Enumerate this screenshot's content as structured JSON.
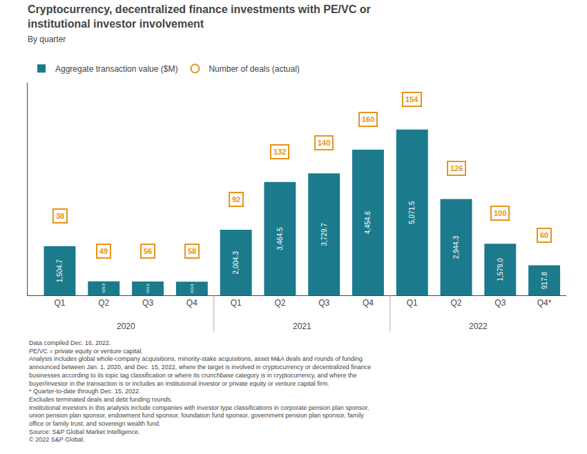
{
  "chart_data": {
    "type": "bar",
    "title": [
      "Cryptocurrency, decentralized finance investments with PE/VC or",
      "institutional investor involvement"
    ],
    "subtitle": "By quarter",
    "categories": [
      [
        "2020",
        "Q1"
      ],
      [
        "2020",
        "Q2"
      ],
      [
        "2020",
        "Q3"
      ],
      [
        "2020",
        "Q4"
      ],
      [
        "2021",
        "Q1"
      ],
      [
        "2021",
        "Q2"
      ],
      [
        "2021",
        "Q3"
      ],
      [
        "2021",
        "Q4"
      ],
      [
        "2022",
        "Q1"
      ],
      [
        "2022",
        "Q2"
      ],
      [
        "2022",
        "Q3"
      ],
      [
        "2022",
        "Q4*"
      ]
    ],
    "series": [
      {
        "name": "Aggregate transaction value ($M)",
        "color": "#1b7a8c",
        "values": [
          1504.7,
          429.8,
          424.6,
          415.8,
          2004.3,
          3464.5,
          3729.7,
          4454.6,
          5071.5,
          2944.3,
          1579.0,
          917.8
        ],
        "value_labels": [
          "1,504.7",
          "429.8",
          "424.6",
          "415.8",
          "2,004.3",
          "3,464.5",
          "3,729.7",
          "4,454.6",
          "5,071.5",
          "2,944.3",
          "1,579.0",
          "917.8"
        ],
        "data_labels": true
      },
      {
        "name": "Number of deals (actual)",
        "type": "scatter",
        "marker": "circle",
        "color": "#e8921a",
        "values": [
          38,
          49,
          56,
          58,
          92,
          132,
          140,
          160,
          154,
          126,
          100,
          60
        ],
        "data_labels": true
      }
    ],
    "ylim": [
      0,
      6500
    ],
    "tick_labels": "x",
    "grid": false,
    "legend": "top left",
    "annotations": [
      "Data compiled Dec. 16, 2022.",
      "PE/VC = private equity or venture capital.",
      "Analysis includes global whole-company acquisitions, minority-stake acquisitions, asset M&A deals and rounds of funding",
      "announced between Jan. 1, 2020, and Dec. 15, 2022, where the target is involved in cryptocurrency or decentralized finance",
      "businesses according to its topic tag classification or where its crunchbase category is in cryptocurrency, and where the",
      "buyer/investor in the transaction is or includes an institutional investor or private equity or venture capital firm.",
      "* Quarter-to-date through Dec. 15, 2022.",
      "Excludes terminated deals and debt funding rounds.",
      "Institutional investors in this analysis include companies with investor type classifications in corporate pension plan sponsor,",
      "union pension plan sponsor, endowment fund sponsor, foundation fund sponsor, government pension plan sponsor, family",
      "office or family trust, and sovereign wealth fund.",
      "Source: S&P Global Market Intelligence.",
      "© 2022 S&P Global."
    ]
  }
}
